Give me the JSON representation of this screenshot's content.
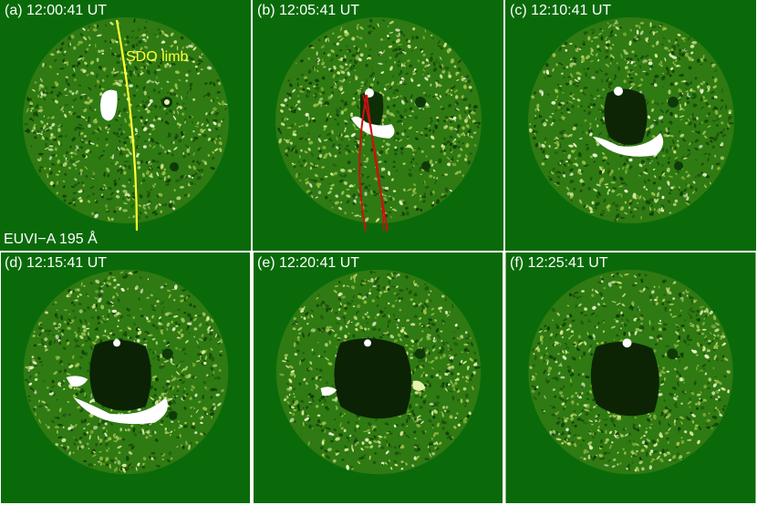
{
  "figure": {
    "background_color": "#0a6a0a",
    "disk_color": "#2f7a12",
    "panels": [
      {
        "id": "a",
        "label": "(a) 12:00:41 UT",
        "dimming_level": 0.0
      },
      {
        "id": "b",
        "label": "(b) 12:05:41 UT",
        "dimming_level": 0.25
      },
      {
        "id": "c",
        "label": "(c) 12:10:41 UT",
        "dimming_level": 0.5
      },
      {
        "id": "d",
        "label": "(d) 12:15:41 UT",
        "dimming_level": 0.8
      },
      {
        "id": "e",
        "label": "(e) 12:20:41 UT",
        "dimming_level": 0.9
      },
      {
        "id": "f",
        "label": "(f) 12:25:41 UT",
        "dimming_level": 0.95
      }
    ],
    "instrument_label": "EUVI−A 195 Å",
    "limb_label": "SDO limb",
    "limb_color": "#ffff33",
    "loop_color": "#cc1111"
  }
}
